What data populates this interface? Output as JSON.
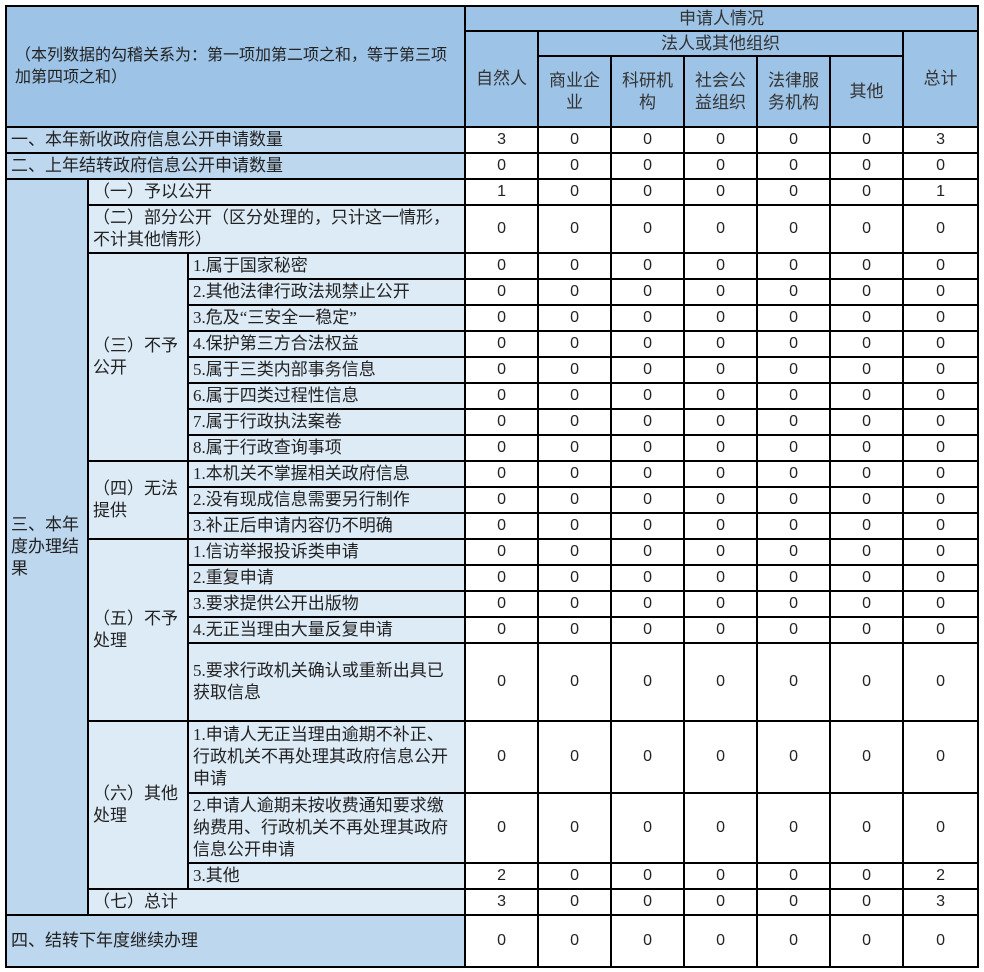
{
  "header": {
    "corner_note": "（本列数据的勾稽关系为：第一项加第二项之和，等于第三项加第四项之和）",
    "applicant_situation": "申请人情况",
    "natural_person": "自然人",
    "legal_org": "法人或其他组织",
    "org_types": [
      "商业企业",
      "科研机构",
      "社会公益组织",
      "法律服务机构",
      "其他"
    ],
    "total": "总计"
  },
  "row1": {
    "label": "一、本年新收政府信息公开申请数量",
    "values": [
      3,
      0,
      0,
      0,
      0,
      0,
      3
    ]
  },
  "row2": {
    "label": "二、上年结转政府信息公开申请数量",
    "values": [
      0,
      0,
      0,
      0,
      0,
      0,
      0
    ]
  },
  "results": {
    "label": "三、本年度办理结果",
    "items": [
      {
        "label": "（一）予以公开",
        "values": [
          1,
          0,
          0,
          0,
          0,
          0,
          1
        ]
      },
      {
        "label": "（二）部分公开（区分处理的，只计这一情形，不计其他情形）",
        "values": [
          0,
          0,
          0,
          0,
          0,
          0,
          0
        ]
      },
      {
        "label": "（三）不予公开",
        "sub": [
          {
            "label": "1.属于国家秘密",
            "values": [
              0,
              0,
              0,
              0,
              0,
              0,
              0
            ]
          },
          {
            "label": "2.其他法律行政法规禁止公开",
            "values": [
              0,
              0,
              0,
              0,
              0,
              0,
              0
            ]
          },
          {
            "label": "3.危及“三安全一稳定”",
            "values": [
              0,
              0,
              0,
              0,
              0,
              0,
              0
            ]
          },
          {
            "label": "4.保护第三方合法权益",
            "values": [
              0,
              0,
              0,
              0,
              0,
              0,
              0
            ]
          },
          {
            "label": "5.属于三类内部事务信息",
            "values": [
              0,
              0,
              0,
              0,
              0,
              0,
              0
            ]
          },
          {
            "label": "6.属于四类过程性信息",
            "values": [
              0,
              0,
              0,
              0,
              0,
              0,
              0
            ]
          },
          {
            "label": "7.属于行政执法案卷",
            "values": [
              0,
              0,
              0,
              0,
              0,
              0,
              0
            ]
          },
          {
            "label": "8.属于行政查询事项",
            "values": [
              0,
              0,
              0,
              0,
              0,
              0,
              0
            ]
          }
        ]
      },
      {
        "label": "（四）无法提供",
        "sub": [
          {
            "label": "1.本机关不掌握相关政府信息",
            "values": [
              0,
              0,
              0,
              0,
              0,
              0,
              0
            ]
          },
          {
            "label": "2.没有现成信息需要另行制作",
            "values": [
              0,
              0,
              0,
              0,
              0,
              0,
              0
            ]
          },
          {
            "label": "3.补正后申请内容仍不明确",
            "values": [
              0,
              0,
              0,
              0,
              0,
              0,
              0
            ]
          }
        ]
      },
      {
        "label": "（五）不予处理",
        "sub": [
          {
            "label": "1.信访举报投诉类申请",
            "values": [
              0,
              0,
              0,
              0,
              0,
              0,
              0
            ]
          },
          {
            "label": "2.重复申请",
            "values": [
              0,
              0,
              0,
              0,
              0,
              0,
              0
            ]
          },
          {
            "label": "3.要求提供公开出版物",
            "values": [
              0,
              0,
              0,
              0,
              0,
              0,
              0
            ]
          },
          {
            "label": "4.无正当理由大量反复申请",
            "values": [
              0,
              0,
              0,
              0,
              0,
              0,
              0
            ]
          },
          {
            "label": "5.要求行政机关确认或重新出具已获取信息",
            "values": [
              0,
              0,
              0,
              0,
              0,
              0,
              0
            ]
          }
        ]
      },
      {
        "label": "（六）其他处理",
        "sub": [
          {
            "label": "1.申请人无正当理由逾期不补正、行政机关不再处理其政府信息公开申请",
            "values": [
              0,
              0,
              0,
              0,
              0,
              0,
              0
            ]
          },
          {
            "label": "2.申请人逾期未按收费通知要求缴纳费用、行政机关不再处理其政府信息公开申请",
            "values": [
              0,
              0,
              0,
              0,
              0,
              0,
              0
            ]
          },
          {
            "label": "3.其他",
            "values": [
              2,
              0,
              0,
              0,
              0,
              0,
              2
            ]
          }
        ]
      },
      {
        "label": "（七）总计",
        "values": [
          3,
          0,
          0,
          0,
          0,
          0,
          3
        ]
      }
    ]
  },
  "row4": {
    "label": "四、结转下年度继续办理",
    "values": [
      0,
      0,
      0,
      0,
      0,
      0,
      0
    ]
  }
}
